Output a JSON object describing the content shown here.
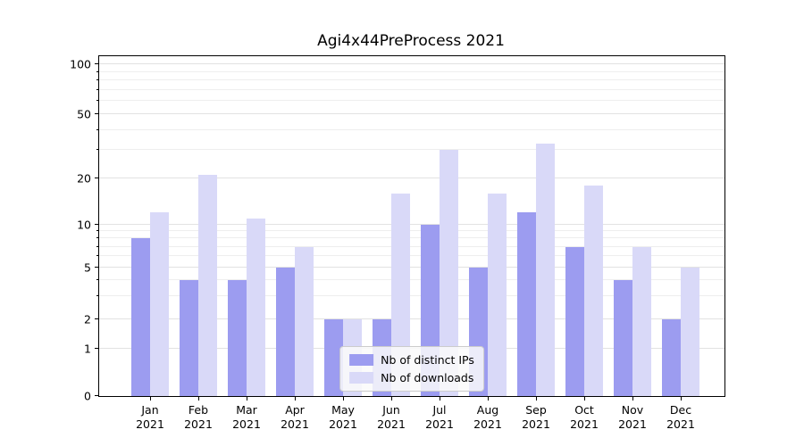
{
  "title": "Agi4x44PreProcess 2021",
  "chart_data": {
    "type": "bar",
    "title": "Agi4x44PreProcess 2021",
    "categories": [
      "Jan\n2021",
      "Feb\n2021",
      "Mar\n2021",
      "Apr\n2021",
      "May\n2021",
      "Jun\n2021",
      "Jul\n2021",
      "Aug\n2021",
      "Sep\n2021",
      "Oct\n2021",
      "Nov\n2021",
      "Dec\n2021"
    ],
    "series": [
      {
        "name": "Nb of distinct IPs",
        "color": "#9c9cf0",
        "values": [
          8,
          4,
          4,
          5,
          2,
          2,
          10,
          5,
          12,
          7,
          4,
          2
        ]
      },
      {
        "name": "Nb of downloads",
        "color": "#d9d9f8",
        "values": [
          12,
          21,
          11,
          7,
          2,
          16,
          30,
          16,
          33,
          18,
          7,
          5
        ]
      }
    ],
    "y_axis": {
      "scale": "symlog",
      "ticks": [
        0,
        1,
        2,
        5,
        10,
        20,
        50,
        100
      ],
      "minor_ticks": [
        3,
        4,
        6,
        7,
        8,
        9,
        30,
        40,
        60,
        70,
        80,
        90
      ],
      "range": [
        0,
        114
      ]
    },
    "x_axis_year": "2021",
    "grid": true,
    "legend_position": "lower center"
  }
}
